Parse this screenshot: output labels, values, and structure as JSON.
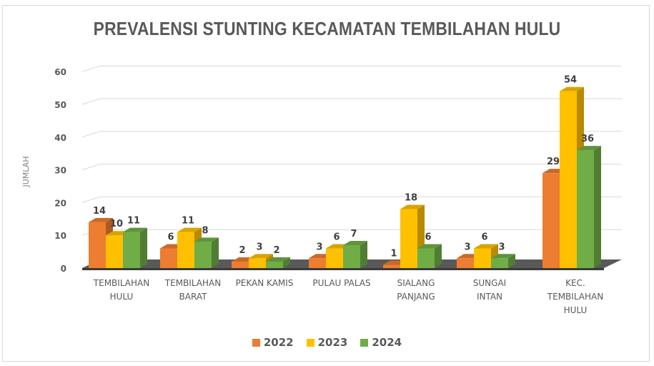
{
  "chart_data": {
    "type": "bar",
    "title": "PREVALENSI STUNTING KECAMATAN TEMBILAHAN HULU",
    "xlabel": "",
    "ylabel": "JUMLAH",
    "ylim": [
      0,
      60
    ],
    "yticks": [
      0,
      10,
      20,
      30,
      40,
      50,
      60
    ],
    "grid": true,
    "legend_position": "bottom",
    "style": "3d-clustered-column",
    "categories": [
      [
        "TEMBILAHAN",
        "HULU"
      ],
      [
        "TEMBILAHAN",
        "BARAT"
      ],
      [
        "PEKAN KAMIS"
      ],
      [
        "PULAU PALAS"
      ],
      [
        "SIALANG",
        "PANJANG"
      ],
      [
        "SUNGAI",
        "INTAN"
      ],
      [
        "KEC.",
        "TEMBILAHAN",
        "HULU"
      ]
    ],
    "series": [
      {
        "name": "2022",
        "color": "#ed7d31",
        "values": [
          14,
          6,
          2,
          3,
          1,
          3,
          29
        ]
      },
      {
        "name": "2023",
        "color": "#ffc000",
        "values": [
          10,
          11,
          3,
          6,
          18,
          6,
          54
        ]
      },
      {
        "name": "2024",
        "color": "#70ad47",
        "values": [
          11,
          8,
          2,
          7,
          6,
          3,
          36
        ]
      }
    ]
  },
  "legend": {
    "items": [
      {
        "label": "2022",
        "color": "#ed7d31"
      },
      {
        "label": "2023",
        "color": "#ffc000"
      },
      {
        "label": "2024",
        "color": "#70ad47"
      }
    ]
  }
}
